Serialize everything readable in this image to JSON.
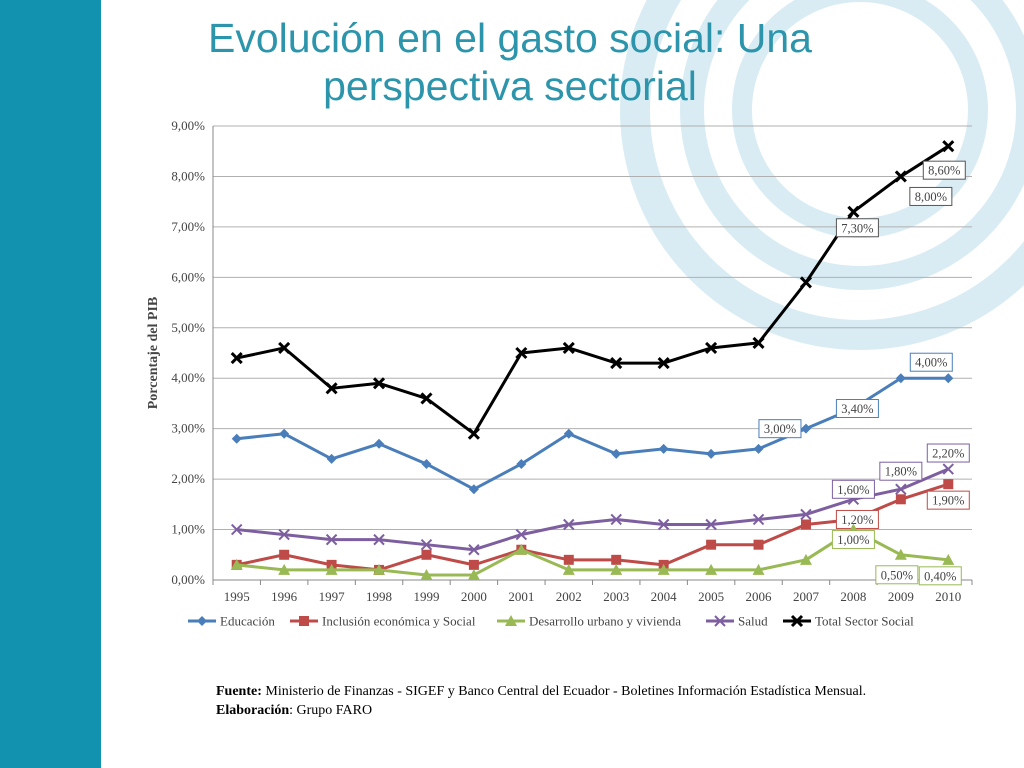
{
  "slide": {
    "title": "Evolución en el gasto social: Una perspectiva sectorial",
    "source_label": "Fuente:",
    "source_text": " Ministerio de Finanzas - SIGEF y Banco Central del Ecuador - Boletines Información Estadística Mensual.",
    "credit_label": "Elaboración",
    "credit_text": ": Grupo FARO",
    "colors": {
      "sidebar": "#1292ae",
      "title": "#2c95ac",
      "decoration": "#d9ecf4"
    }
  },
  "chart_data": {
    "type": "line",
    "title": "",
    "xlabel": "",
    "ylabel": "Porcentaje del PIB",
    "categories": [
      "1995",
      "1996",
      "1997",
      "1998",
      "1999",
      "2000",
      "2001",
      "2002",
      "2003",
      "2004",
      "2005",
      "2006",
      "2007",
      "2008",
      "2009",
      "2010"
    ],
    "ylim": [
      0,
      9
    ],
    "yticks": [
      "0,00%",
      "1,00%",
      "2,00%",
      "3,00%",
      "4,00%",
      "5,00%",
      "6,00%",
      "7,00%",
      "8,00%",
      "9,00%"
    ],
    "grid": true,
    "legend_position": "bottom",
    "series": [
      {
        "name": "Educación",
        "color": "#4a7ebb",
        "marker": "diamond",
        "values": [
          2.8,
          2.9,
          2.4,
          2.7,
          2.3,
          1.8,
          2.3,
          2.9,
          2.5,
          2.6,
          2.5,
          2.6,
          3.0,
          3.4,
          4.0,
          4.0
        ],
        "labels": [
          {
            "i": 12,
            "text": "3,00%"
          },
          {
            "i": 13,
            "text": "3,40%"
          },
          {
            "i": 15,
            "text": "4,00%"
          }
        ]
      },
      {
        "name": "Inclusión económica y Social",
        "color": "#be4b48",
        "marker": "square",
        "values": [
          0.3,
          0.5,
          0.3,
          0.2,
          0.5,
          0.3,
          0.6,
          0.4,
          0.4,
          0.3,
          0.7,
          0.7,
          1.1,
          1.2,
          1.6,
          1.9
        ],
        "labels": [
          {
            "i": 13,
            "text": "1,20%"
          },
          {
            "i": 15,
            "text": "1,90%"
          }
        ]
      },
      {
        "name": "Desarrollo urbano y vivienda",
        "color": "#98b954",
        "marker": "triangle",
        "values": [
          0.3,
          0.2,
          0.2,
          0.2,
          0.1,
          0.1,
          0.6,
          0.2,
          0.2,
          0.2,
          0.2,
          0.2,
          0.4,
          1.0,
          0.5,
          0.4
        ],
        "labels": [
          {
            "i": 13,
            "text": "1,00%"
          },
          {
            "i": 14,
            "text": "0,50%"
          },
          {
            "i": 15,
            "text": "0,40%"
          }
        ]
      },
      {
        "name": "Salud",
        "color": "#7d5fa0",
        "marker": "x",
        "values": [
          1.0,
          0.9,
          0.8,
          0.8,
          0.7,
          0.6,
          0.9,
          1.1,
          1.2,
          1.1,
          1.1,
          1.2,
          1.3,
          1.6,
          1.8,
          2.2
        ],
        "labels": [
          {
            "i": 13,
            "text": "1,60%"
          },
          {
            "i": 14,
            "text": "1,80%"
          },
          {
            "i": 15,
            "text": "2,20%"
          }
        ]
      },
      {
        "name": "Total Sector Social",
        "color": "#000000",
        "marker": "star",
        "values": [
          4.4,
          4.6,
          3.8,
          3.9,
          3.6,
          2.9,
          4.5,
          4.6,
          4.3,
          4.3,
          4.6,
          4.7,
          5.9,
          7.3,
          8.0,
          8.6
        ],
        "labels": [
          {
            "i": 13,
            "text": "7,30%"
          },
          {
            "i": 14,
            "text": "8,00%"
          },
          {
            "i": 15,
            "text": "8,60%"
          }
        ]
      }
    ]
  }
}
